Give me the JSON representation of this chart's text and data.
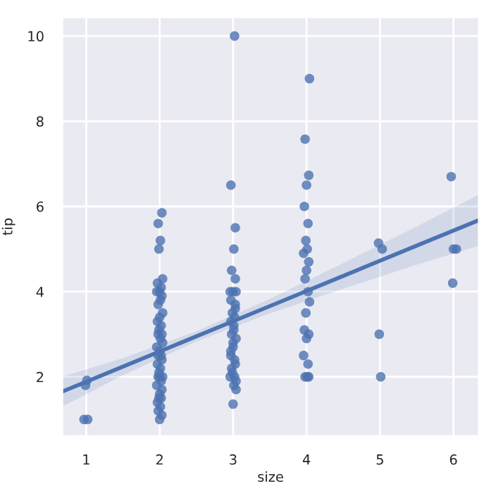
{
  "chart_data": {
    "type": "scatter",
    "xlabel": "size",
    "ylabel": "tip",
    "xlim": [
      0.67,
      6.35
    ],
    "ylim": [
      0.6,
      10.45
    ],
    "xticks": [
      1,
      2,
      3,
      4,
      5,
      6
    ],
    "yticks": [
      2,
      4,
      6,
      8,
      10
    ],
    "grid": true,
    "series": [
      {
        "color": "#4c72b0",
        "marker": "circle",
        "x": [
          0.97,
          1.02,
          0.99,
          1.01,
          2.03,
          1.98,
          2.01,
          1.99,
          2.04,
          1.97,
          2.02,
          2.0,
          1.96,
          2.03,
          2.01,
          1.98,
          2.04,
          2.0,
          1.97,
          2.02,
          1.99,
          2.03,
          1.98,
          2.01,
          2.04,
          1.96,
          2.0,
          2.02,
          1.98,
          2.03,
          1.97,
          2.01,
          1.99,
          2.04,
          2.0,
          1.98,
          2.02,
          1.96,
          2.03,
          2.0,
          1.99,
          2.02,
          1.97,
          2.01,
          1.98,
          2.03,
          2.0,
          3.02,
          2.97,
          3.03,
          3.01,
          2.98,
          3.04,
          2.96,
          3.0,
          3.03,
          2.99,
          3.02,
          2.97,
          3.01,
          2.98,
          3.04,
          3.0,
          2.97,
          3.03,
          2.99,
          3.02,
          2.96,
          3.01,
          3.04,
          3.0,
          3.03,
          3.01,
          2.97,
          3.02,
          2.98,
          3.04,
          3.03,
          2.97,
          3.0,
          4.04,
          3.98,
          4.03,
          4.0,
          3.97,
          4.02,
          3.99,
          4.01,
          3.96,
          4.03,
          4.0,
          3.98,
          4.02,
          4.04,
          3.99,
          3.97,
          4.03,
          4.0,
          3.96,
          4.02,
          3.98,
          4.01,
          4.03,
          4.98,
          5.03,
          4.99,
          5.01,
          5.97,
          6.0,
          6.04,
          5.99
        ],
        "values": [
          1.0,
          1.0,
          1.8,
          1.92,
          5.85,
          5.6,
          5.2,
          5.0,
          4.3,
          4.2,
          4.1,
          4.0,
          4.0,
          3.9,
          3.8,
          3.7,
          3.5,
          3.4,
          3.3,
          3.2,
          3.1,
          3.0,
          3.0,
          2.9,
          2.8,
          2.7,
          2.6,
          2.5,
          2.5,
          2.4,
          2.3,
          2.2,
          2.1,
          2.0,
          2.0,
          2.0,
          1.9,
          1.8,
          1.7,
          1.6,
          1.5,
          1.5,
          1.4,
          1.3,
          1.2,
          1.1,
          1.0,
          10.0,
          6.5,
          5.5,
          5.0,
          4.5,
          4.0,
          4.0,
          4.0,
          3.7,
          3.5,
          3.4,
          3.3,
          3.2,
          3.0,
          2.9,
          2.7,
          2.5,
          2.3,
          2.1,
          2.0,
          2.0,
          1.8,
          1.7,
          1.36,
          3.6,
          3.1,
          2.6,
          2.4,
          2.2,
          1.9,
          4.3,
          3.8,
          2.8,
          9.0,
          7.58,
          6.73,
          6.5,
          6.0,
          5.6,
          5.2,
          5.0,
          4.9,
          4.7,
          4.5,
          4.3,
          4.0,
          3.76,
          3.5,
          3.1,
          3.0,
          2.9,
          2.5,
          2.3,
          2.0,
          2.0,
          2.0,
          5.14,
          5.0,
          3.0,
          2.0,
          6.7,
          5.0,
          5.0,
          4.2
        ]
      },
      {
        "type": "line",
        "marker": "none",
        "color": "#4c72b0",
        "x": [
          0.67,
          1.5,
          2.5,
          3.5,
          4.5,
          5.5,
          6.35
        ],
        "values": [
          1.65,
          2.24,
          2.95,
          3.66,
          4.37,
          5.08,
          5.68
        ],
        "lower": [
          1.3,
          2.04,
          2.83,
          3.49,
          4.07,
          4.63,
          5.08
        ],
        "upper": [
          2.0,
          2.44,
          3.07,
          3.83,
          4.67,
          5.53,
          6.28
        ]
      }
    ]
  }
}
